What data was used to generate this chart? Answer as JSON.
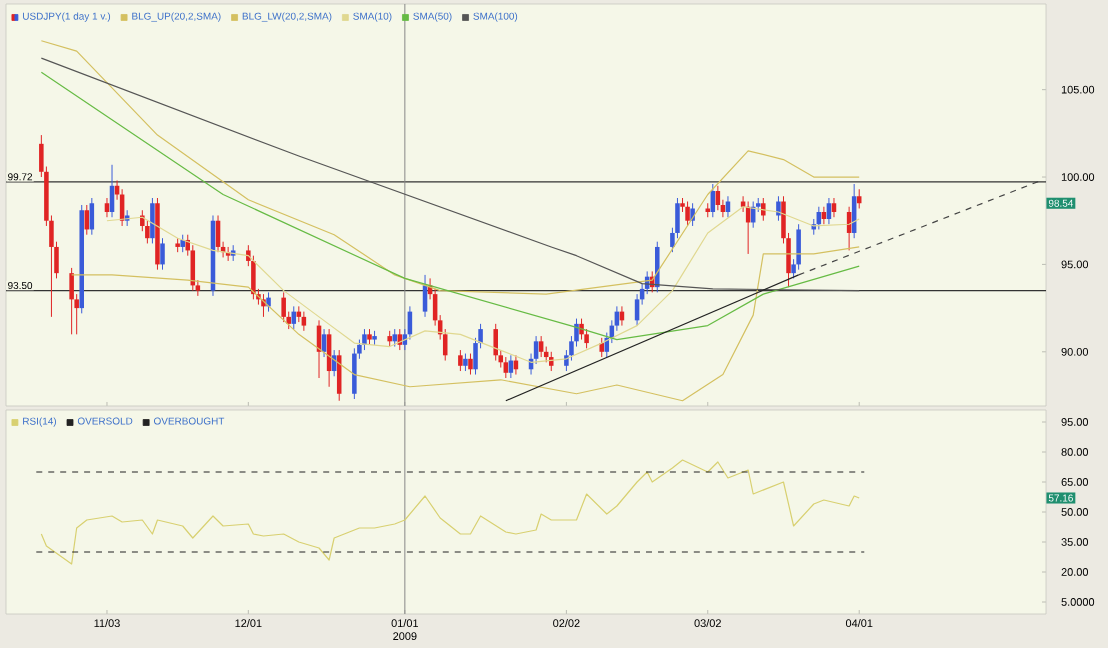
{
  "chart_data": [
    {
      "type": "candlestick",
      "legend": "top left",
      "tick_labels": "y",
      "xlim": [
        "2008-10-14",
        "2009-05-08"
      ],
      "ylim": [
        86.9,
        109.9
      ],
      "xticks": [
        {
          "value": "2008-11-03",
          "label": null
        },
        {
          "value": "2008-12-01",
          "label": null
        },
        {
          "value": "2009-01-01",
          "label": null
        },
        {
          "value": "2009-02-02",
          "label": null
        },
        {
          "value": "2009-03-02",
          "label": null
        },
        {
          "value": "2009-04-01",
          "label": null
        }
      ],
      "yticks": [
        {
          "value": 90,
          "label": "90.00"
        },
        {
          "value": 95,
          "label": "95.00"
        },
        {
          "value": 100,
          "label": "100.00"
        },
        {
          "value": 105,
          "label": "105.00"
        }
      ],
      "series": [
        {
          "type": "candlestick",
          "name": "USDJPY(1 day  1 v.)",
          "colors": [
            "#e02424",
            "#e02424",
            "#e02424",
            "#e02424",
            "#e02424",
            "#e02424",
            "#3a5bd9",
            "#e02424",
            "#3a5bd9",
            "#e02424",
            "#3a5bd9",
            "#e02424",
            "#e02424",
            "#3a5bd9",
            "#e02424",
            "#e02424",
            "#3a5bd9",
            "#e02424",
            "#3a5bd9",
            "#e02424",
            "#3a5bd9",
            "#e02424",
            "#e02424",
            "#e02424",
            "#3a5bd9",
            "#e02424",
            "#e02424",
            "#e02424",
            "#3a5bd9",
            "#e02424",
            "#e02424",
            "#e02424",
            "#e02424",
            "#3a5bd9",
            "#e02424",
            "#e02424",
            "#3a5bd9",
            "#e02424",
            "#e02424",
            "#e02424",
            "#3a5bd9",
            "#e02424",
            "#3a5bd9",
            "#e02424",
            "#3a5bd9",
            "#3a5bd9",
            "#3a5bd9",
            "#e02424",
            "#3a5bd9",
            "#e02424",
            "#3a5bd9",
            "#e02424",
            "#3a5bd9",
            "#3a5bd9",
            "#3a5bd9",
            "#e02424",
            "#e02424",
            "#e02424",
            "#e02424",
            "#e02424",
            "#3a5bd9",
            "#e02424",
            "#3a5bd9",
            "#3a5bd9",
            "#e02424",
            "#e02424",
            "#e02424",
            "#3a5bd9",
            "#e02424",
            "#3a5bd9",
            "#3a5bd9",
            "#e02424",
            "#e02424",
            "#e02424",
            "#3a5bd9",
            "#3a5bd9",
            "#3a5bd9",
            "#e02424",
            "#e02424",
            "#e02424",
            "#3a5bd9",
            "#3a5bd9",
            "#3a5bd9",
            "#e02424",
            "#3a5bd9",
            "#3a5bd9",
            "#3a5bd9",
            "#e02424",
            "#3a5bd9",
            "#3a5bd9",
            "#3a5bd9",
            "#e02424",
            "#e02424",
            "#3a5bd9",
            "#e02424",
            "#3a5bd9",
            "#e02424",
            "#e02424",
            "#3a5bd9",
            "#e02424",
            "#e02424",
            "#3a5bd9",
            "#3a5bd9",
            "#e02424",
            "#3a5bd9",
            "#e02424",
            "#e02424",
            "#3a5bd9",
            "#3a5bd9",
            "#3a5bd9",
            "#3a5bd9",
            "#e02424",
            "#3a5bd9",
            "#e02424",
            "#e02424",
            "#3a5bd9",
            "#e02424"
          ],
          "x": [
            "2008-10-21",
            "2008-10-22",
            "2008-10-23",
            "2008-10-24",
            "2008-10-27",
            "2008-10-28",
            "2008-10-29",
            "2008-10-30",
            "2008-10-31",
            "2008-11-03",
            "2008-11-04",
            "2008-11-05",
            "2008-11-06",
            "2008-11-07",
            "2008-11-10",
            "2008-11-11",
            "2008-11-12",
            "2008-11-13",
            "2008-11-14",
            "2008-11-17",
            "2008-11-18",
            "2008-11-19",
            "2008-11-20",
            "2008-11-21",
            "2008-11-24",
            "2008-11-25",
            "2008-11-26",
            "2008-11-27",
            "2008-11-28",
            "2008-12-01",
            "2008-12-02",
            "2008-12-03",
            "2008-12-04",
            "2008-12-05",
            "2008-12-08",
            "2008-12-09",
            "2008-12-10",
            "2008-12-11",
            "2008-12-12",
            "2008-12-15",
            "2008-12-16",
            "2008-12-17",
            "2008-12-18",
            "2008-12-19",
            "2008-12-22",
            "2008-12-23",
            "2008-12-24",
            "2008-12-25",
            "2008-12-26",
            "2008-12-29",
            "2008-12-30",
            "2008-12-31",
            "2009-01-01",
            "2009-01-02",
            "2009-01-05",
            "2009-01-06",
            "2009-01-07",
            "2009-01-08",
            "2009-01-09",
            "2009-01-12",
            "2009-01-13",
            "2009-01-14",
            "2009-01-15",
            "2009-01-16",
            "2009-01-19",
            "2009-01-20",
            "2009-01-21",
            "2009-01-22",
            "2009-01-23",
            "2009-01-26",
            "2009-01-27",
            "2009-01-28",
            "2009-01-29",
            "2009-01-30",
            "2009-02-02",
            "2009-02-03",
            "2009-02-04",
            "2009-02-05",
            "2009-02-06",
            "2009-02-09",
            "2009-02-10",
            "2009-02-11",
            "2009-02-12",
            "2009-02-13",
            "2009-02-16",
            "2009-02-17",
            "2009-02-18",
            "2009-02-19",
            "2009-02-20",
            "2009-02-23",
            "2009-02-24",
            "2009-02-25",
            "2009-02-26",
            "2009-02-27",
            "2009-03-02",
            "2009-03-03",
            "2009-03-04",
            "2009-03-05",
            "2009-03-06",
            "2009-03-09",
            "2009-03-10",
            "2009-03-11",
            "2009-03-12",
            "2009-03-13",
            "2009-03-16",
            "2009-03-17",
            "2009-03-18",
            "2009-03-19",
            "2009-03-20",
            "2009-03-23",
            "2009-03-24",
            "2009-03-25",
            "2009-03-26",
            "2009-03-27",
            "2009-03-30",
            "2009-03-31",
            "2009-04-01"
          ],
          "ohlc": [
            [
              101.9,
              102.4,
              100.0,
              100.3
            ],
            [
              100.3,
              100.6,
              97.2,
              97.5
            ],
            [
              97.5,
              97.8,
              92.0,
              96.0
            ],
            [
              96.0,
              96.3,
              94.2,
              94.5
            ],
            [
              94.5,
              94.8,
              91.0,
              93.0
            ],
            [
              93.0,
              93.3,
              91.0,
              92.5
            ],
            [
              92.5,
              98.4,
              92.2,
              98.1
            ],
            [
              98.1,
              98.4,
              96.7,
              97.0
            ],
            [
              97.0,
              98.8,
              96.7,
              98.5
            ],
            [
              98.5,
              98.8,
              97.7,
              98.0
            ],
            [
              98.0,
              100.7,
              97.7,
              99.5
            ],
            [
              99.5,
              99.8,
              98.7,
              99.0
            ],
            [
              99.0,
              99.3,
              97.2,
              97.5
            ],
            [
              97.5,
              98.1,
              97.2,
              97.8
            ],
            [
              97.8,
              98.1,
              96.9,
              97.2
            ],
            [
              97.2,
              97.5,
              96.2,
              96.5
            ],
            [
              96.5,
              98.8,
              96.2,
              98.5
            ],
            [
              98.5,
              98.8,
              94.7,
              95.0
            ],
            [
              95.0,
              96.5,
              94.7,
              96.2
            ],
            [
              96.2,
              96.5,
              95.7,
              96.0
            ],
            [
              96.0,
              96.7,
              95.7,
              96.4
            ],
            [
              96.4,
              96.7,
              95.5,
              95.8
            ],
            [
              95.8,
              96.1,
              93.5,
              93.8
            ],
            [
              93.8,
              94.1,
              93.2,
              93.5
            ],
            [
              93.5,
              97.8,
              93.2,
              97.5
            ],
            [
              97.5,
              97.8,
              95.7,
              96.0
            ],
            [
              96.0,
              96.3,
              95.4,
              95.7
            ],
            [
              95.7,
              96.0,
              95.2,
              95.5
            ],
            [
              95.5,
              96.1,
              95.2,
              95.8
            ],
            [
              95.8,
              96.1,
              94.9,
              95.2
            ],
            [
              95.2,
              95.5,
              93.0,
              93.3
            ],
            [
              93.3,
              93.6,
              92.7,
              93.0
            ],
            [
              93.0,
              93.3,
              92.0,
              92.6
            ],
            [
              92.6,
              93.4,
              92.3,
              93.1
            ],
            [
              93.1,
              93.4,
              91.7,
              92.0
            ],
            [
              92.0,
              92.3,
              91.3,
              91.6
            ],
            [
              91.6,
              92.6,
              91.3,
              92.3
            ],
            [
              92.3,
              92.6,
              91.7,
              92.0
            ],
            [
              92.0,
              92.3,
              91.2,
              91.5
            ],
            [
              91.5,
              91.8,
              88.5,
              90.0
            ],
            [
              90.0,
              91.3,
              89.7,
              91.0
            ],
            [
              91.0,
              91.3,
              88.0,
              88.9
            ],
            [
              88.9,
              90.1,
              88.6,
              89.8
            ],
            [
              89.8,
              90.1,
              87.2,
              87.6
            ],
            [
              87.6,
              90.2,
              87.3,
              89.9
            ],
            [
              89.9,
              90.7,
              89.6,
              90.4
            ],
            [
              90.4,
              91.3,
              90.1,
              91.0
            ],
            [
              91.0,
              91.3,
              90.4,
              90.7
            ],
            [
              90.7,
              91.2,
              90.4,
              90.9
            ],
            [
              90.9,
              91.2,
              90.3,
              90.6
            ],
            [
              90.6,
              91.3,
              90.3,
              91.0
            ],
            [
              91.0,
              91.3,
              90.1,
              90.4
            ],
            [
              90.4,
              91.3,
              90.1,
              91.0
            ],
            [
              91.0,
              92.6,
              90.7,
              92.3
            ],
            [
              92.3,
              94.4,
              92.0,
              93.8
            ],
            [
              93.8,
              94.2,
              93.0,
              93.3
            ],
            [
              93.3,
              93.6,
              91.5,
              91.8
            ],
            [
              91.8,
              92.1,
              90.7,
              91.0
            ],
            [
              91.0,
              91.3,
              89.5,
              89.8
            ],
            [
              89.8,
              90.1,
              88.9,
              89.2
            ],
            [
              89.2,
              89.9,
              88.9,
              89.6
            ],
            [
              89.6,
              89.9,
              88.7,
              89.0
            ],
            [
              89.0,
              90.8,
              88.7,
              90.5
            ],
            [
              90.5,
              91.6,
              90.2,
              91.3
            ],
            [
              91.3,
              91.6,
              89.5,
              89.8
            ],
            [
              89.8,
              90.1,
              89.1,
              89.4
            ],
            [
              89.4,
              89.7,
              88.5,
              88.8
            ],
            [
              88.8,
              89.8,
              88.5,
              89.5
            ],
            [
              89.5,
              89.8,
              88.7,
              89.0
            ],
            [
              89.0,
              89.9,
              88.7,
              89.6
            ],
            [
              89.6,
              90.9,
              89.3,
              90.6
            ],
            [
              90.6,
              90.9,
              89.7,
              90.0
            ],
            [
              90.0,
              90.3,
              89.4,
              89.7
            ],
            [
              89.7,
              90.0,
              88.9,
              89.2
            ],
            [
              89.2,
              90.1,
              88.9,
              89.8
            ],
            [
              89.8,
              90.9,
              89.5,
              90.6
            ],
            [
              90.6,
              91.9,
              90.3,
              91.6
            ],
            [
              91.6,
              91.9,
              90.7,
              91.0
            ],
            [
              91.0,
              91.3,
              90.2,
              90.5
            ],
            [
              90.5,
              90.8,
              89.7,
              90.0
            ],
            [
              90.0,
              91.1,
              89.7,
              90.8
            ],
            [
              90.8,
              91.8,
              90.5,
              91.5
            ],
            [
              91.5,
              92.6,
              91.2,
              92.3
            ],
            [
              92.3,
              92.6,
              91.5,
              91.8
            ],
            [
              91.8,
              93.3,
              91.5,
              93.0
            ],
            [
              93.0,
              93.9,
              92.7,
              93.6
            ],
            [
              93.6,
              94.6,
              93.3,
              94.3
            ],
            [
              94.3,
              94.6,
              93.4,
              93.7
            ],
            [
              93.7,
              96.3,
              93.4,
              96.0
            ],
            [
              96.0,
              97.1,
              95.7,
              96.8
            ],
            [
              96.8,
              98.8,
              96.5,
              98.5
            ],
            [
              98.5,
              98.8,
              98.0,
              98.3
            ],
            [
              98.3,
              98.6,
              97.2,
              97.5
            ],
            [
              97.5,
              98.5,
              97.2,
              98.2
            ],
            [
              98.2,
              98.5,
              97.7,
              98.0
            ],
            [
              98.0,
              99.6,
              97.7,
              99.2
            ],
            [
              99.2,
              99.5,
              98.1,
              98.4
            ],
            [
              98.4,
              98.7,
              97.7,
              98.0
            ],
            [
              98.0,
              98.9,
              97.7,
              98.6
            ],
            [
              98.6,
              98.9,
              98.0,
              98.3
            ],
            [
              98.3,
              98.6,
              95.6,
              97.4
            ],
            [
              97.4,
              98.6,
              97.1,
              98.3
            ],
            [
              98.3,
              98.8,
              98.0,
              98.5
            ],
            [
              98.5,
              98.8,
              97.5,
              97.8
            ],
            [
              97.8,
              98.9,
              97.5,
              98.6
            ],
            [
              98.6,
              98.9,
              96.2,
              96.5
            ],
            [
              96.5,
              96.8,
              93.7,
              94.5
            ],
            [
              94.5,
              95.3,
              94.2,
              95.0
            ],
            [
              95.0,
              97.3,
              94.7,
              97.0
            ],
            [
              97.0,
              97.6,
              96.7,
              97.3
            ],
            [
              97.3,
              98.3,
              97.0,
              98.0
            ],
            [
              98.0,
              98.3,
              97.3,
              97.6
            ],
            [
              97.6,
              98.8,
              97.3,
              98.5
            ],
            [
              98.5,
              98.8,
              97.7,
              98.0
            ],
            [
              98.0,
              98.3,
              95.8,
              96.8
            ],
            [
              96.8,
              99.6,
              96.5,
              98.9
            ],
            [
              98.9,
              99.3,
              98.2,
              98.5
            ]
          ]
        },
        {
          "type": "line",
          "name": "BLG_UP(20,2,SMA)",
          "color": "#d4c060",
          "x": [
            "2008-10-21",
            "2008-10-28",
            "2008-11-13",
            "2008-12-01",
            "2008-12-18",
            "2008-12-30",
            "2009-01-08",
            "2009-01-29",
            "2009-02-19",
            "2009-03-02",
            "2009-03-10",
            "2009-03-17",
            "2009-03-23",
            "2009-04-01"
          ],
          "values": [
            107.8,
            107.2,
            102.4,
            98.7,
            96.7,
            94.4,
            93.5,
            93.3,
            94.1,
            99.0,
            101.5,
            101.0,
            100.0,
            100.0
          ]
        },
        {
          "type": "line",
          "name": "BLG_LW(20,2,SMA)",
          "color": "#d4c060",
          "x": [
            "2008-10-27",
            "2008-11-04",
            "2008-11-19",
            "2008-12-01",
            "2008-12-11",
            "2008-12-22",
            "2009-01-02",
            "2009-01-20",
            "2009-02-04",
            "2009-02-12",
            "2009-02-25",
            "2009-03-05",
            "2009-03-11",
            "2009-03-13",
            "2009-03-23",
            "2009-04-01"
          ],
          "values": [
            94.4,
            94.4,
            94.1,
            93.7,
            91.0,
            88.7,
            88.0,
            88.4,
            87.6,
            88.1,
            87.2,
            88.7,
            92.1,
            95.6,
            95.6,
            96.0
          ]
        },
        {
          "type": "line",
          "name": "SMA(10)",
          "color": "#e0d890",
          "x": [
            "2008-11-03",
            "2008-11-10",
            "2008-11-17",
            "2008-11-24",
            "2008-12-01",
            "2008-12-08",
            "2008-12-15",
            "2008-12-22",
            "2008-12-29",
            "2009-01-05",
            "2009-01-12",
            "2009-01-19",
            "2009-01-26",
            "2009-02-02",
            "2009-02-09",
            "2009-02-16",
            "2009-02-23",
            "2009-03-02",
            "2009-03-09",
            "2009-03-16",
            "2009-03-23",
            "2009-03-30",
            "2009-04-01"
          ],
          "values": [
            97.5,
            97.7,
            96.5,
            95.8,
            95.5,
            93.5,
            92.0,
            90.5,
            90.3,
            91.2,
            91.0,
            90.2,
            89.4,
            89.6,
            90.5,
            91.5,
            93.5,
            96.8,
            98.3,
            98.0,
            97.2,
            97.3,
            97.6
          ]
        },
        {
          "type": "line",
          "name": "SMA(50)",
          "color": "#66bb44",
          "x": [
            "2008-10-21",
            "2008-11-26",
            "2009-01-01",
            "2009-02-04",
            "2009-02-12",
            "2009-03-02",
            "2009-03-13",
            "2009-04-01"
          ],
          "values": [
            106.0,
            99.0,
            94.2,
            91.4,
            90.7,
            91.5,
            93.3,
            94.9
          ]
        },
        {
          "type": "line",
          "name": "SMA(100)",
          "color": "#555555",
          "x": [
            "2008-10-21",
            "2008-12-11",
            "2009-01-30",
            "2009-02-04",
            "2009-02-17",
            "2009-03-03",
            "2009-04-01"
          ],
          "values": [
            106.8,
            101.2,
            96.0,
            95.5,
            93.9,
            93.6,
            93.5
          ]
        },
        {
          "type": "line",
          "color": "#222222",
          "line_style": "solid",
          "x": [
            "2009-01-21",
            "2009-03-20"
          ],
          "values": [
            87.2,
            94.4
          ]
        },
        {
          "type": "line",
          "color": "#444444",
          "line_style": "dashed",
          "x": [
            "2009-03-20",
            "2009-05-07"
          ],
          "values": [
            94.4,
            99.8
          ]
        }
      ],
      "ref_lines": [
        {
          "axis": "y",
          "value": 99.72,
          "label": "99.72",
          "color": "#333333"
        },
        {
          "axis": "y",
          "value": 93.5,
          "label": "93.50",
          "color": "#333333"
        },
        {
          "axis": "x",
          "value": "2009-01-01",
          "color": "#888888"
        }
      ],
      "annotations": [
        "98.54"
      ]
    },
    {
      "type": "line",
      "legend": "top left",
      "xlim": [
        "2008-10-14",
        "2009-05-08"
      ],
      "ylim": [
        -1,
        101
      ],
      "xticks": [
        {
          "value": "2008-11-03",
          "label": "11/03"
        },
        {
          "value": "2008-12-01",
          "label": "12/01"
        },
        {
          "value": "2009-01-01",
          "label": "01/01 2009"
        },
        {
          "value": "2009-02-02",
          "label": "02/02"
        },
        {
          "value": "2009-03-02",
          "label": "03/02"
        },
        {
          "value": "2009-04-01",
          "label": "04/01"
        }
      ],
      "yticks": [
        {
          "value": 5,
          "label": "5.0000"
        },
        {
          "value": 20,
          "label": "20.00"
        },
        {
          "value": 35,
          "label": "35.00"
        },
        {
          "value": 50,
          "label": "50.00"
        },
        {
          "value": 65,
          "label": "65.00"
        },
        {
          "value": 80,
          "label": "80.00"
        },
        {
          "value": 95,
          "label": "95.00"
        }
      ],
      "series": [
        {
          "name": "RSI(14)",
          "color": "#d8d070",
          "x": [
            "2008-10-21",
            "2008-10-22",
            "2008-10-27",
            "2008-10-28",
            "2008-10-30",
            "2008-11-04",
            "2008-11-06",
            "2008-11-10",
            "2008-11-12",
            "2008-11-13",
            "2008-11-18",
            "2008-11-20",
            "2008-11-24",
            "2008-11-26",
            "2008-12-01",
            "2008-12-02",
            "2008-12-04",
            "2008-12-08",
            "2008-12-11",
            "2008-12-15",
            "2008-12-17",
            "2008-12-18",
            "2008-12-23",
            "2008-12-26",
            "2008-12-30",
            "2009-01-01",
            "2009-01-05",
            "2009-01-08",
            "2009-01-12",
            "2009-01-14",
            "2009-01-16",
            "2009-01-21",
            "2009-01-23",
            "2009-01-27",
            "2009-01-28",
            "2009-01-30",
            "2009-02-04",
            "2009-02-06",
            "2009-02-10",
            "2009-02-12",
            "2009-02-16",
            "2009-02-18",
            "2009-02-19",
            "2009-02-23",
            "2009-02-25",
            "2009-03-02",
            "2009-03-04",
            "2009-03-06",
            "2009-03-10",
            "2009-03-11",
            "2009-03-17",
            "2009-03-19",
            "2009-03-23",
            "2009-03-25",
            "2009-03-30",
            "2009-03-31",
            "2009-04-01"
          ],
          "values": [
            39,
            33,
            24,
            42,
            46,
            48,
            45,
            46,
            39,
            46,
            43,
            37,
            48,
            43,
            44,
            39,
            38,
            39,
            35,
            32,
            26,
            37,
            42,
            42,
            44,
            46,
            58,
            47,
            39,
            39,
            48,
            40,
            39,
            41,
            49,
            46,
            46,
            59,
            49,
            53,
            65,
            70,
            65,
            72,
            76,
            70,
            75,
            67,
            71,
            59,
            65,
            43,
            54,
            56,
            53,
            58,
            57
          ]
        },
        {
          "name": "OVERSOLD",
          "color": "#222222",
          "line_style": "dashed",
          "x": [
            "2008-10-20",
            "2009-04-02"
          ],
          "values": [
            30,
            30
          ]
        },
        {
          "name": "OVERBOUGHT",
          "color": "#222222",
          "line_style": "dashed",
          "x": [
            "2008-10-20",
            "2009-04-02"
          ],
          "values": [
            70,
            70
          ]
        }
      ],
      "ref_lines": [
        {
          "axis": "x",
          "value": "2009-01-01",
          "color": "#888888"
        }
      ],
      "annotations": [
        "57.16"
      ]
    }
  ]
}
